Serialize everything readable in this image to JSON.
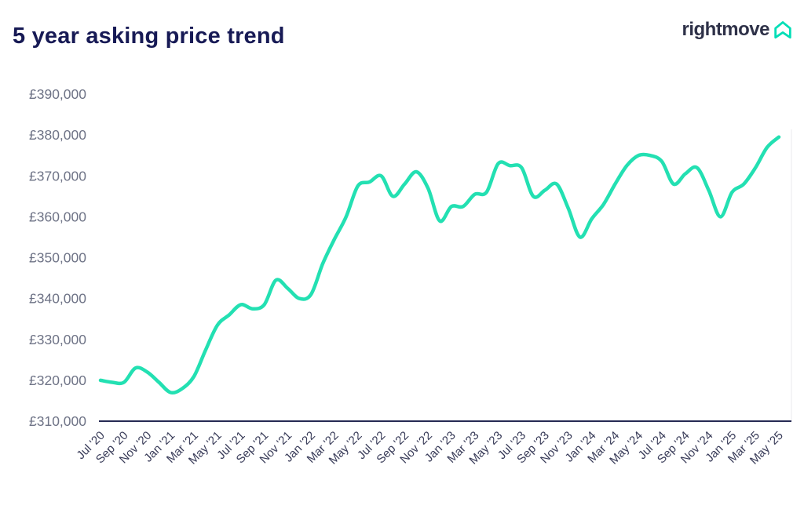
{
  "header": {
    "title": "5 year asking price trend",
    "logo_text": "rightmove"
  },
  "colors": {
    "background": "#ffffff",
    "title": "#171a55",
    "logo_text": "#2e3148",
    "logo_icon": "#00deb6",
    "line": "#23e0b2",
    "axis": "#262a53",
    "plot_right_border": "#f0f1f3",
    "y_tick_label": "#6e7386",
    "x_tick_label": "#383b58"
  },
  "chart_data": {
    "type": "line",
    "title": "5 year asking price trend",
    "xlabel": "",
    "ylabel": "",
    "ylim": [
      310000,
      390000
    ],
    "y_tick_step": 10000,
    "grid": "off",
    "legend": "none",
    "currency": "£",
    "y_tick_values": [
      390000,
      380000,
      370000,
      360000,
      350000,
      340000,
      330000,
      320000,
      310000
    ],
    "y_tick_labels": [
      "£390,000",
      "£380,000",
      "£370,000",
      "£360,000",
      "£350,000",
      "£340,000",
      "£330,000",
      "£320,000",
      "£310,000"
    ],
    "x_tick_labels": [
      "Jul '20",
      "Sep '20",
      "Nov '20",
      "Jan '21",
      "Mar '21",
      "May '21",
      "Jul '21",
      "Sep '21",
      "Nov '21",
      "Jan '22",
      "Mar '22",
      "May '22",
      "Jul '22",
      "Sep '22",
      "Nov '22",
      "Jan '23",
      "Mar '23",
      "May '23",
      "Jul '23",
      "Sep '23",
      "Nov '23",
      "Jan '24",
      "Mar '24",
      "May '24",
      "Jul '24",
      "Sep '24",
      "Nov '24",
      "Jan '25",
      "Mar '25",
      "May '25"
    ],
    "x_tick_every_n_months": 2,
    "months": [
      "Jul '20",
      "Aug '20",
      "Sep '20",
      "Oct '20",
      "Nov '20",
      "Dec '20",
      "Jan '21",
      "Feb '21",
      "Mar '21",
      "Apr '21",
      "May '21",
      "Jun '21",
      "Jul '21",
      "Aug '21",
      "Sep '21",
      "Oct '21",
      "Nov '21",
      "Dec '21",
      "Jan '22",
      "Feb '22",
      "Mar '22",
      "Apr '22",
      "May '22",
      "Jun '22",
      "Jul '22",
      "Aug '22",
      "Sep '22",
      "Oct '22",
      "Nov '22",
      "Dec '22",
      "Jan '23",
      "Feb '23",
      "Mar '23",
      "Apr '23",
      "May '23",
      "Jun '23",
      "Jul '23",
      "Aug '23",
      "Sep '23",
      "Oct '23",
      "Nov '23",
      "Dec '23",
      "Jan '24",
      "Feb '24",
      "Mar '24",
      "Apr '24",
      "May '24",
      "Jun '24",
      "Jul '24",
      "Aug '24",
      "Sep '24",
      "Oct '24",
      "Nov '24",
      "Dec '24",
      "Jan '25",
      "Feb '25",
      "Mar '25",
      "Apr '25",
      "May '25"
    ],
    "values": [
      320000,
      319500,
      319500,
      323000,
      322000,
      319500,
      317000,
      318000,
      321000,
      327500,
      333500,
      336000,
      338500,
      337500,
      338500,
      344500,
      342500,
      340000,
      341000,
      348500,
      354500,
      360000,
      367500,
      368500,
      370000,
      365000,
      368000,
      371000,
      367000,
      359000,
      362500,
      362500,
      365500,
      366000,
      373000,
      372500,
      372000,
      365000,
      366500,
      368000,
      362000,
      355000,
      359500,
      363000,
      368000,
      372500,
      375000,
      375000,
      373500,
      368000,
      370500,
      372000,
      366500,
      360000,
      366000,
      368000,
      372000,
      377000,
      379500
    ]
  }
}
